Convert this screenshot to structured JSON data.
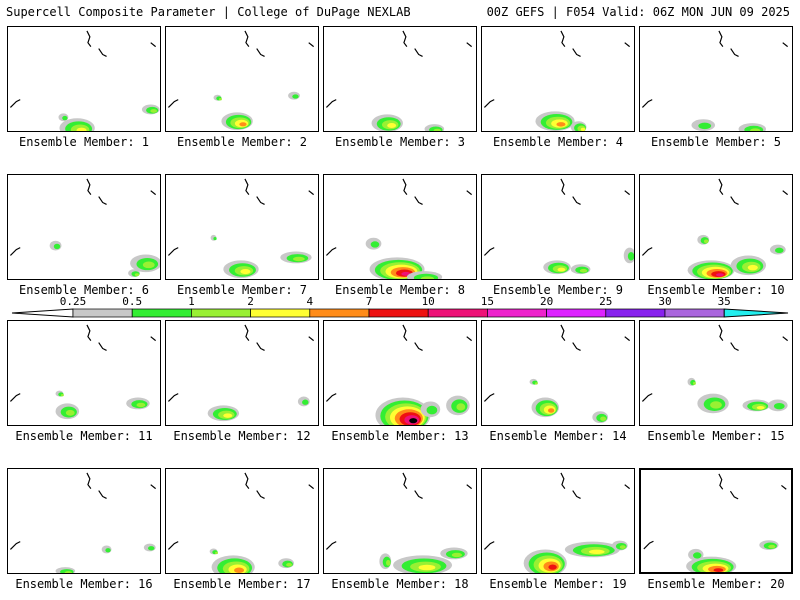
{
  "header": {
    "left": "Supercell Composite Parameter | College of DuPage NEXLAB",
    "right": "00Z GEFS | F054 Valid: 06Z MON JUN 09 2025"
  },
  "colorbar": {
    "ticks": [
      "0.25",
      "0.5",
      "1",
      "2",
      "4",
      "7",
      "10",
      "15",
      "20",
      "25",
      "30",
      "35"
    ],
    "colors": [
      "#ffffff",
      "#c8c8c8",
      "#33ee33",
      "#99f033",
      "#ffff33",
      "#ff8c19",
      "#ee1111",
      "#ee1177",
      "#ee22cc",
      "#dd22ff",
      "#8822ee",
      "#aa66dd",
      "#22eeee"
    ]
  },
  "panels": [
    {
      "label": "Ensemble Member: 1"
    },
    {
      "label": "Ensemble Member: 2"
    },
    {
      "label": "Ensemble Member: 3"
    },
    {
      "label": "Ensemble Member: 4"
    },
    {
      "label": "Ensemble Member: 5"
    },
    {
      "label": "Ensemble Member: 6"
    },
    {
      "label": "Ensemble Member: 7"
    },
    {
      "label": "Ensemble Member: 8"
    },
    {
      "label": "Ensemble Member: 9"
    },
    {
      "label": "Ensemble Member: 10"
    },
    {
      "label": "Ensemble Member: 11"
    },
    {
      "label": "Ensemble Member: 12"
    },
    {
      "label": "Ensemble Member: 13"
    },
    {
      "label": "Ensemble Member: 14"
    },
    {
      "label": "Ensemble Member: 15"
    },
    {
      "label": "Ensemble Member: 16"
    },
    {
      "label": "Ensemble Member: 17"
    },
    {
      "label": "Ensemble Member: 18"
    },
    {
      "label": "Ensemble Member: 19"
    },
    {
      "label": "Ensemble Member: 20"
    }
  ]
}
